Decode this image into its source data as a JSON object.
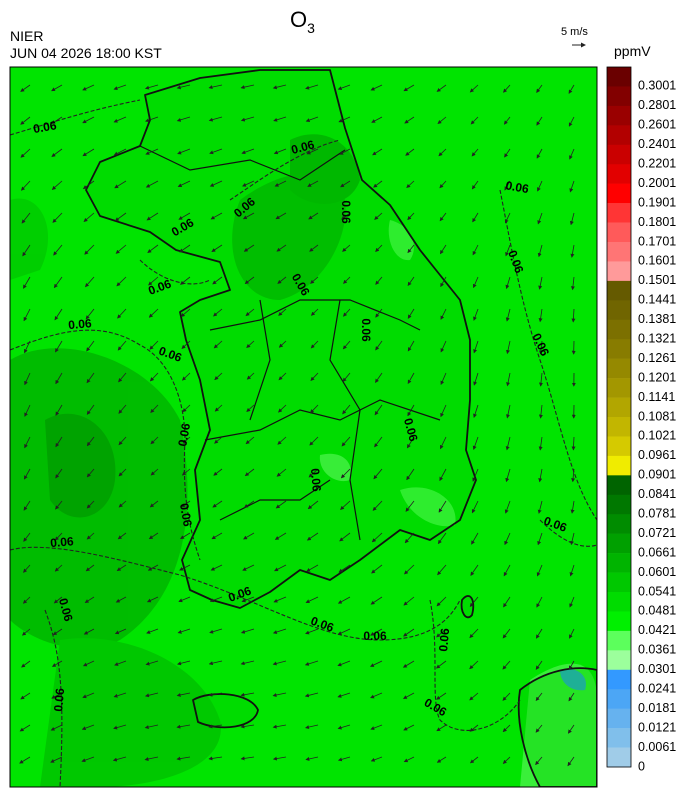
{
  "header": {
    "title": "O",
    "title_subscript": "3",
    "agency": "NIER",
    "datetime": "JUN 04 2026 18:00 KST",
    "wind_scale": "5 m/s"
  },
  "legend": {
    "unit": "ppmV",
    "items": [
      {
        "label": "0.3001",
        "color": "#6a0000"
      },
      {
        "label": "0.2801",
        "color": "#820000"
      },
      {
        "label": "0.2601",
        "color": "#9a0000"
      },
      {
        "label": "0.2401",
        "color": "#b20000"
      },
      {
        "label": "0.2201",
        "color": "#ca0000"
      },
      {
        "label": "0.2001",
        "color": "#e20000"
      },
      {
        "label": "0.1901",
        "color": "#ff0000"
      },
      {
        "label": "0.1801",
        "color": "#ff3535"
      },
      {
        "label": "0.1701",
        "color": "#ff5a5a"
      },
      {
        "label": "0.1601",
        "color": "#ff7575"
      },
      {
        "label": "0.1501",
        "color": "#ff9a9a"
      },
      {
        "label": "0.1441",
        "color": "#655a00"
      },
      {
        "label": "0.1381",
        "color": "#706500"
      },
      {
        "label": "0.1321",
        "color": "#7c7000"
      },
      {
        "label": "0.1261",
        "color": "#887c00"
      },
      {
        "label": "0.1201",
        "color": "#958900"
      },
      {
        "label": "0.1141",
        "color": "#a39700"
      },
      {
        "label": "0.1081",
        "color": "#b2a600"
      },
      {
        "label": "0.1021",
        "color": "#c2b600"
      },
      {
        "label": "0.0961",
        "color": "#d5ca00"
      },
      {
        "label": "0.0901",
        "color": "#f0ec00"
      },
      {
        "label": "0.0841",
        "color": "#006400"
      },
      {
        "label": "0.0781",
        "color": "#007800"
      },
      {
        "label": "0.0721",
        "color": "#008c00"
      },
      {
        "label": "0.0661",
        "color": "#00a000"
      },
      {
        "label": "0.0601",
        "color": "#00b400"
      },
      {
        "label": "0.0541",
        "color": "#00c800"
      },
      {
        "label": "0.0481",
        "color": "#00dc00"
      },
      {
        "label": "0.0421",
        "color": "#00f000"
      },
      {
        "label": "0.0361",
        "color": "#5cff5c"
      },
      {
        "label": "0.0301",
        "color": "#9cff9c"
      },
      {
        "label": "0.0241",
        "color": "#3399ff"
      },
      {
        "label": "0.0181",
        "color": "#4ca6f5"
      },
      {
        "label": "0.0121",
        "color": "#66b2ef"
      },
      {
        "label": "0.0061",
        "color": "#80bfeb"
      },
      {
        "label": "0",
        "color": "#a0cce8"
      }
    ]
  },
  "map": {
    "contour_labels": [
      "0.06",
      "0.06",
      "0.06",
      "0.06",
      "0.06",
      "0.06",
      "0.06",
      "0.06",
      "0.06",
      "0.06",
      "0.06",
      "0.06",
      "0.06",
      "0.06",
      "0.06",
      "0.06",
      "0.06",
      "0.06",
      "0.06",
      "0.06",
      "0.06",
      "0.06",
      "0.06",
      "0.06",
      "0.06",
      "0.06"
    ]
  }
}
